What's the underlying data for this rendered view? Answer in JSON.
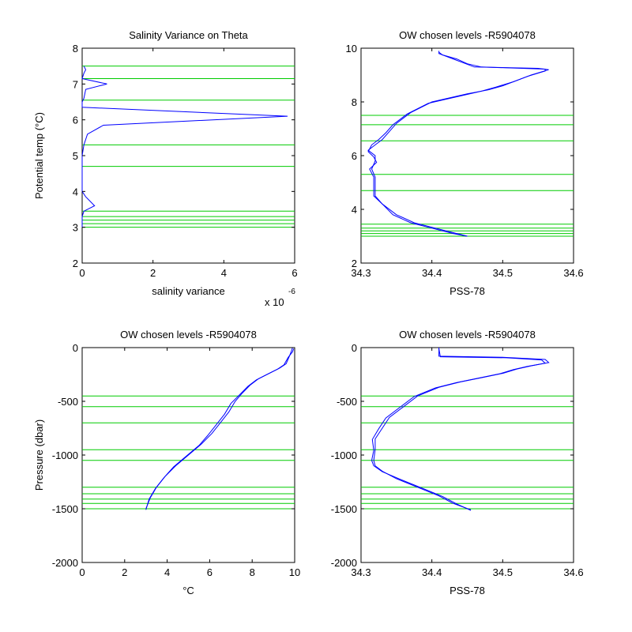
{
  "chart_data": [
    {
      "type": "line",
      "title": "Salinity Variance on Theta",
      "xlabel": "salinity variance",
      "x_exponent_label": "x 10",
      "x_exponent": "-6",
      "ylabel": "Potential temp (°C)",
      "xlim": [
        0,
        6
      ],
      "ylim": [
        2,
        8
      ],
      "xticks": [
        0,
        2,
        4,
        6
      ],
      "yticks": [
        2,
        3,
        4,
        5,
        6,
        7,
        8
      ],
      "line_color": "#0000ff",
      "level_color": "#00cc00",
      "levels": [
        3.0,
        3.1,
        3.2,
        3.3,
        3.45,
        4.7,
        5.3,
        6.55,
        7.15,
        7.5
      ],
      "series": [
        {
          "points": [
            [
              0.05,
              7.5
            ],
            [
              0.1,
              7.4
            ],
            [
              0.05,
              7.3
            ],
            [
              0.0,
              7.15
            ],
            [
              0.7,
              7.0
            ],
            [
              0.1,
              6.85
            ],
            [
              0.05,
              6.6
            ],
            [
              0.0,
              6.5
            ],
            [
              0.0,
              6.35
            ],
            [
              5.8,
              6.1
            ],
            [
              0.6,
              5.85
            ],
            [
              0.15,
              5.6
            ],
            [
              0.05,
              5.3
            ],
            [
              0.0,
              5.0
            ],
            [
              0.0,
              4.4
            ],
            [
              0.0,
              4.0
            ],
            [
              0.1,
              3.85
            ],
            [
              0.35,
              3.6
            ],
            [
              0.05,
              3.45
            ],
            [
              0.0,
              3.3
            ],
            [
              0.0,
              3.0
            ]
          ]
        }
      ]
    },
    {
      "type": "line",
      "title": "OW chosen levels -R5904078",
      "xlabel": "PSS-78",
      "ylabel": "",
      "xlim": [
        34.3,
        34.6
      ],
      "ylim": [
        2,
        10
      ],
      "xticks": [
        34.3,
        34.4,
        34.5,
        34.6
      ],
      "yticks": [
        2,
        4,
        6,
        8,
        10
      ],
      "line_color": "#0000ff",
      "level_color": "#00cc00",
      "levels": [
        3.0,
        3.1,
        3.2,
        3.3,
        3.45,
        4.7,
        5.3,
        6.55,
        7.15,
        7.5
      ],
      "series": [
        {
          "points": [
            [
              34.41,
              9.9
            ],
            [
              34.41,
              9.8
            ],
            [
              34.43,
              9.6
            ],
            [
              34.445,
              9.45
            ],
            [
              34.46,
              9.3
            ],
            [
              34.55,
              9.25
            ],
            [
              34.565,
              9.2
            ],
            [
              34.54,
              9.0
            ],
            [
              34.52,
              8.8
            ],
            [
              34.5,
              8.6
            ],
            [
              34.48,
              8.45
            ],
            [
              34.45,
              8.3
            ],
            [
              34.4,
              8.0
            ],
            [
              34.37,
              7.6
            ],
            [
              34.35,
              7.2
            ],
            [
              34.34,
              6.9
            ],
            [
              34.33,
              6.6
            ],
            [
              34.32,
              6.4
            ],
            [
              34.31,
              6.2
            ],
            [
              34.32,
              6.0
            ],
            [
              34.32,
              5.8
            ],
            [
              34.315,
              5.5
            ],
            [
              34.32,
              5.2
            ],
            [
              34.32,
              4.8
            ],
            [
              34.32,
              4.5
            ],
            [
              34.33,
              4.2
            ],
            [
              34.345,
              3.8
            ],
            [
              34.37,
              3.5
            ],
            [
              34.4,
              3.3
            ],
            [
              34.43,
              3.1
            ],
            [
              34.45,
              3.0
            ]
          ]
        },
        {
          "points": [
            [
              34.41,
              9.85
            ],
            [
              34.415,
              9.75
            ],
            [
              34.435,
              9.6
            ],
            [
              34.45,
              9.42
            ],
            [
              34.47,
              9.3
            ],
            [
              34.56,
              9.22
            ],
            [
              34.56,
              9.15
            ],
            [
              34.535,
              8.95
            ],
            [
              34.515,
              8.75
            ],
            [
              34.49,
              8.55
            ],
            [
              34.47,
              8.4
            ],
            [
              34.445,
              8.25
            ],
            [
              34.395,
              7.95
            ],
            [
              34.365,
              7.55
            ],
            [
              34.345,
              7.15
            ],
            [
              34.335,
              6.85
            ],
            [
              34.325,
              6.6
            ],
            [
              34.315,
              6.4
            ],
            [
              34.31,
              6.15
            ],
            [
              34.318,
              5.95
            ],
            [
              34.322,
              5.75
            ],
            [
              34.312,
              5.5
            ],
            [
              34.318,
              5.2
            ],
            [
              34.318,
              4.8
            ],
            [
              34.318,
              4.5
            ],
            [
              34.33,
              4.2
            ],
            [
              34.35,
              3.8
            ],
            [
              34.375,
              3.5
            ],
            [
              34.405,
              3.3
            ],
            [
              34.435,
              3.1
            ],
            [
              34.45,
              3.0
            ]
          ]
        }
      ]
    },
    {
      "type": "line",
      "title": "OW chosen levels -R5904078",
      "xlabel": "°C",
      "ylabel": "Pressure (dbar)",
      "xlim": [
        0,
        10
      ],
      "ylim": [
        -2000,
        0
      ],
      "xticks": [
        0,
        2,
        4,
        6,
        8,
        10
      ],
      "yticks": [
        -2000,
        -1500,
        -1000,
        -500,
        0
      ],
      "line_color": "#0000ff",
      "level_color": "#00cc00",
      "levels": [
        -450,
        -550,
        -700,
        -950,
        -1050,
        -1300,
        -1360,
        -1410,
        -1450,
        -1500
      ],
      "series": [
        {
          "points": [
            [
              9.9,
              0
            ],
            [
              9.85,
              -30
            ],
            [
              9.75,
              -80
            ],
            [
              9.6,
              -150
            ],
            [
              9.3,
              -190
            ],
            [
              8.9,
              -230
            ],
            [
              8.3,
              -290
            ],
            [
              7.9,
              -350
            ],
            [
              7.5,
              -430
            ],
            [
              7.2,
              -500
            ],
            [
              6.9,
              -600
            ],
            [
              6.5,
              -700
            ],
            [
              6.1,
              -800
            ],
            [
              5.6,
              -900
            ],
            [
              5.0,
              -1000
            ],
            [
              4.4,
              -1100
            ],
            [
              3.9,
              -1200
            ],
            [
              3.5,
              -1300
            ],
            [
              3.2,
              -1400
            ],
            [
              3.0,
              -1500
            ]
          ]
        },
        {
          "points": [
            [
              9.95,
              -10
            ],
            [
              9.9,
              -40
            ],
            [
              9.7,
              -90
            ],
            [
              9.5,
              -160
            ],
            [
              9.2,
              -200
            ],
            [
              8.8,
              -240
            ],
            [
              8.2,
              -300
            ],
            [
              7.8,
              -360
            ],
            [
              7.4,
              -440
            ],
            [
              7.0,
              -520
            ],
            [
              6.7,
              -620
            ],
            [
              6.3,
              -720
            ],
            [
              5.9,
              -820
            ],
            [
              5.5,
              -910
            ],
            [
              4.9,
              -1010
            ],
            [
              4.3,
              -1110
            ],
            [
              3.85,
              -1210
            ],
            [
              3.45,
              -1310
            ],
            [
              3.15,
              -1410
            ],
            [
              3.0,
              -1510
            ]
          ]
        }
      ]
    },
    {
      "type": "line",
      "title": "OW chosen levels -R5904078",
      "xlabel": "PSS-78",
      "ylabel": "",
      "xlim": [
        34.3,
        34.6
      ],
      "ylim": [
        -2000,
        0
      ],
      "xticks": [
        34.3,
        34.4,
        34.5,
        34.6
      ],
      "yticks": [
        -2000,
        -1500,
        -1000,
        -500,
        0
      ],
      "line_color": "#0000ff",
      "level_color": "#00cc00",
      "levels": [
        -450,
        -550,
        -700,
        -950,
        -1050,
        -1300,
        -1360,
        -1410,
        -1450,
        -1500
      ],
      "series": [
        {
          "points": [
            [
              34.41,
              0
            ],
            [
              34.41,
              -80
            ],
            [
              34.5,
              -90
            ],
            [
              34.56,
              -110
            ],
            [
              34.565,
              -140
            ],
            [
              34.54,
              -170
            ],
            [
              34.52,
              -200
            ],
            [
              34.5,
              -240
            ],
            [
              34.47,
              -280
            ],
            [
              34.44,
              -320
            ],
            [
              34.41,
              -370
            ],
            [
              34.38,
              -450
            ],
            [
              34.36,
              -550
            ],
            [
              34.34,
              -650
            ],
            [
              34.33,
              -750
            ],
            [
              34.32,
              -850
            ],
            [
              34.32,
              -950
            ],
            [
              34.318,
              -1050
            ],
            [
              34.32,
              -1100
            ],
            [
              34.33,
              -1150
            ],
            [
              34.35,
              -1220
            ],
            [
              34.38,
              -1300
            ],
            [
              34.41,
              -1380
            ],
            [
              34.43,
              -1450
            ],
            [
              34.455,
              -1510
            ]
          ]
        },
        {
          "points": [
            [
              34.41,
              -10
            ],
            [
              34.412,
              -85
            ],
            [
              34.505,
              -95
            ],
            [
              34.555,
              -115
            ],
            [
              34.56,
              -145
            ],
            [
              34.535,
              -175
            ],
            [
              34.515,
              -205
            ],
            [
              34.495,
              -245
            ],
            [
              34.465,
              -285
            ],
            [
              34.435,
              -325
            ],
            [
              34.405,
              -375
            ],
            [
              34.375,
              -455
            ],
            [
              34.355,
              -555
            ],
            [
              34.335,
              -655
            ],
            [
              34.325,
              -755
            ],
            [
              34.316,
              -855
            ],
            [
              34.318,
              -955
            ],
            [
              34.315,
              -1050
            ],
            [
              34.318,
              -1100
            ],
            [
              34.33,
              -1155
            ],
            [
              34.355,
              -1225
            ],
            [
              34.385,
              -1305
            ],
            [
              34.415,
              -1385
            ],
            [
              34.435,
              -1455
            ],
            [
              34.455,
              -1515
            ]
          ]
        }
      ]
    }
  ]
}
